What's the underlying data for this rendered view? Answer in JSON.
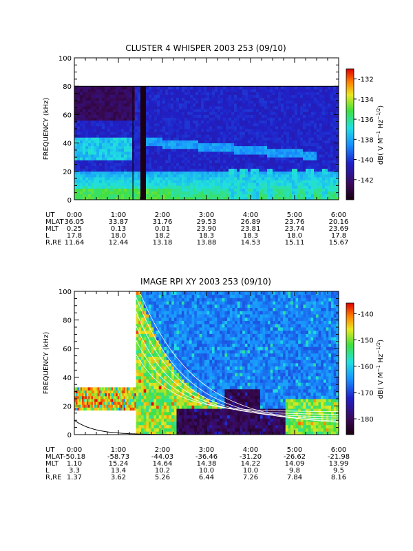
{
  "chart_data": [
    {
      "type": "heatmap",
      "title": "CLUSTER 4 WHISPER 2003 253 (09/10)",
      "ylabel": "FREQUENCY (kHz)",
      "ylim": [
        0,
        100
      ],
      "yticks": [
        "0",
        "20",
        "40",
        "60",
        "80",
        "100"
      ],
      "xlim_hours": [
        0,
        6
      ],
      "xticks": [
        "0:00",
        "1:00",
        "2:00",
        "3:00",
        "4:00",
        "5:00",
        "6:00"
      ],
      "colorbar": {
        "label": "dB( V M⁻¹ Hz⁻¹ᐟ²)",
        "label_plain": "dB( V M-1 Hz-1/2)",
        "range": [
          -144,
          -131
        ],
        "ticks": [
          "-132",
          "-134",
          "-136",
          "-138",
          "-140",
          "-142"
        ],
        "tick_values": [
          -132,
          -134,
          -136,
          -138,
          -140,
          -142
        ]
      },
      "data_region_khz": [
        0,
        80
      ],
      "features": {
        "data_gap_hours": [
          1.4,
          1.6
        ],
        "bright_emission_below_khz": 20,
        "bursts_hours": [
          3.6,
          3.85,
          4.1,
          4.45,
          5.0,
          5.35,
          5.7
        ]
      },
      "ephemeris": {
        "labels": [
          "UT",
          "MLAT",
          "MLT",
          "L",
          "R,RE"
        ],
        "rows": [
          [
            "0:00",
            "1:00",
            "2:00",
            "3:00",
            "4:00",
            "5:00",
            "6:00"
          ],
          [
            "36.05",
            "33.87",
            "31.76",
            "29.53",
            "26.89",
            "23.76",
            "20.16"
          ],
          [
            "0.25",
            "0.13",
            "0.01",
            "23.90",
            "23.81",
            "23.74",
            "23.69"
          ],
          [
            "17.8",
            "18.0",
            "18.2",
            "18.3",
            "18.3",
            "18.0",
            "17.8"
          ],
          [
            "11.64",
            "12.44",
            "13.18",
            "13.88",
            "14.53",
            "15.11",
            "15.67"
          ]
        ]
      }
    },
    {
      "type": "heatmap",
      "title": "IMAGE RPI XY 2003 253 (09/10)",
      "ylabel": "FREQUENCY (kHz)",
      "ylim": [
        0,
        100
      ],
      "yticks": [
        "0",
        "20",
        "40",
        "60",
        "80",
        "100"
      ],
      "xlim_hours": [
        0,
        6
      ],
      "xticks": [
        "0:00",
        "1:00",
        "2:00",
        "3:00",
        "4:00",
        "5:00",
        "6:00"
      ],
      "colorbar": {
        "label_plain": "dB( V M-1 Hz-1/2)",
        "range": [
          -186,
          -136
        ],
        "ticks": [
          "-140",
          "-150",
          "-160",
          "-170",
          "-180"
        ],
        "tick_values": [
          -140,
          -150,
          -160,
          -170,
          -180
        ]
      },
      "features": {
        "early_band_hours": [
          0,
          1.4
        ],
        "early_band_khz": [
          17,
          33
        ],
        "full_coverage_start_hours": 1.4,
        "decay_curve_start_khz": 10
      },
      "ephemeris": {
        "labels": [
          "UT",
          "MLAT",
          "MLT",
          "L",
          "R,RE"
        ],
        "rows": [
          [
            "0:00",
            "1:00",
            "2:00",
            "3:00",
            "4:00",
            "5:00",
            "6:00"
          ],
          [
            "-50.18",
            "-58.73",
            "-44.03",
            "-36.46",
            "-31.20",
            "-26.62",
            "-21.98"
          ],
          [
            "1.10",
            "15.24",
            "14.64",
            "14.38",
            "14.22",
            "14.09",
            "13.99"
          ],
          [
            "3.3",
            "13.4",
            "10.2",
            "10.0",
            "10.0",
            "9.8",
            "9.5"
          ],
          [
            "1.37",
            "3.62",
            "5.26",
            "6.44",
            "7.26",
            "7.84",
            "8.16"
          ]
        ]
      }
    }
  ]
}
